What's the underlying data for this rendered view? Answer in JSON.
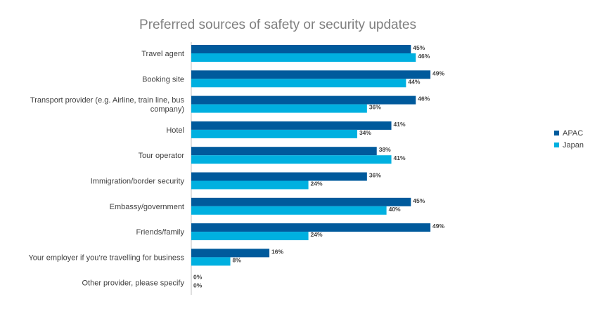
{
  "chart_data": {
    "type": "bar",
    "orientation": "horizontal",
    "title": "Preferred sources of safety or security updates",
    "xlabel": "",
    "ylabel": "",
    "xlim": [
      0,
      55
    ],
    "grid": false,
    "legend_position": "right",
    "categories": [
      [
        "Travel agent"
      ],
      [
        "Booking site"
      ],
      [
        "Transport provider (e.g. Airline, train line, bus",
        "company)"
      ],
      [
        "Hotel"
      ],
      [
        "Tour operator"
      ],
      [
        "Immigration/border security"
      ],
      [
        "Embassy/government"
      ],
      [
        "Friends/family"
      ],
      [
        "Your employer if you’re travelling for business"
      ],
      [
        "Other provider, please specify"
      ]
    ],
    "series": [
      {
        "name": "APAC",
        "color": "#005a9c",
        "values": [
          45,
          49,
          46,
          41,
          38,
          36,
          45,
          49,
          16,
          0
        ],
        "labels": [
          "45%",
          "49%",
          "46%",
          "41%",
          "38%",
          "36%",
          "45%",
          "49%",
          "16%",
          "0%"
        ]
      },
      {
        "name": "Japan",
        "color": "#00b0e0",
        "values": [
          46,
          44,
          36,
          34,
          41,
          24,
          40,
          24,
          8,
          0
        ],
        "labels": [
          "46%",
          "44%",
          "36%",
          "34%",
          "41%",
          "24%",
          "40%",
          "24%",
          "8%",
          "0%"
        ]
      }
    ]
  }
}
